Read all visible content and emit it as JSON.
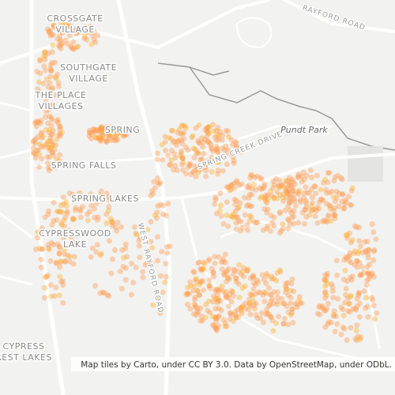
{
  "map": {
    "labels": {
      "crossgate": [
        "CROSSGATE",
        "VILLAGE"
      ],
      "southgate": [
        "SOUTHGATE",
        "VILLAGE"
      ],
      "theplace": [
        "THE PLACE",
        "VILLAGES"
      ],
      "spring": "SPRING",
      "springfalls": "SPRING FALLS",
      "springlakes": "SPRING LAKES",
      "cypresswood": [
        "CYPRESSWOOD",
        "LAKE"
      ],
      "cypressforest": [
        "CYPRESS",
        "REST LAKES"
      ],
      "westrayford": "WEST RAYFORD ROAD",
      "springcreek": "SPRING CREEK DRIVE",
      "rayford": "RAYFORD ROAD",
      "pundt": "Pundt Park"
    },
    "attribution": "Map tiles by Carto, under CC BY 3.0. Data by OpenStreetMap, under ODbL."
  }
}
